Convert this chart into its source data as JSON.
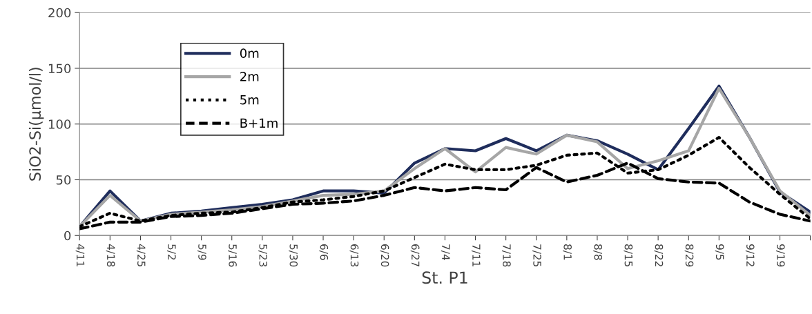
{
  "chart_data": {
    "type": "line",
    "xlabel": "St. P1",
    "ylabel": "SiO2-Si(μmol/l)",
    "categories": [
      "4/11",
      "4/18",
      "4/25",
      "5/2",
      "5/9",
      "5/16",
      "5/23",
      "5/30",
      "6/6",
      "6/13",
      "6/20",
      "6/27",
      "7/4",
      "7/11",
      "7/18",
      "7/25",
      "8/1",
      "8/8",
      "8/15",
      "8/22",
      "8/29",
      "9/5",
      "9/12",
      "9/19",
      null
    ],
    "series": [
      {
        "name": "0m",
        "color": "#1f2d5c",
        "line_style": "solid",
        "values": [
          8,
          40,
          13,
          20,
          22,
          25,
          28,
          32,
          40,
          40,
          38,
          65,
          78,
          76,
          87,
          76,
          90,
          85,
          73,
          59,
          96,
          134,
          88,
          39,
          21
        ]
      },
      {
        "name": "2m",
        "color": "#a6a6a6",
        "line_style": "solid",
        "values": [
          8,
          36,
          13,
          19,
          21,
          23,
          26,
          31,
          36,
          37,
          40,
          60,
          78,
          57,
          79,
          73,
          90,
          84,
          60,
          67,
          76,
          132,
          88,
          40,
          18
        ]
      },
      {
        "name": "5m",
        "color": "#000000",
        "line_style": "dotted",
        "values": [
          8,
          20,
          13,
          18,
          20,
          21,
          25,
          30,
          32,
          35,
          40,
          52,
          64,
          59,
          59,
          63,
          72,
          74,
          56,
          59,
          72,
          88,
          61,
          37,
          15
        ]
      },
      {
        "name": "B+1m",
        "color": "#000000",
        "line_style": "dashed",
        "values": [
          6,
          12,
          12,
          17,
          18,
          20,
          24,
          28,
          29,
          31,
          36,
          43,
          40,
          43,
          41,
          61,
          48,
          54,
          65,
          51,
          48,
          47,
          30,
          19,
          13
        ]
      }
    ],
    "ylim": [
      0,
      200
    ],
    "yticks": [
      0,
      50,
      100,
      150,
      200
    ],
    "grid": "y",
    "legend": "top left",
    "marker": "none"
  }
}
